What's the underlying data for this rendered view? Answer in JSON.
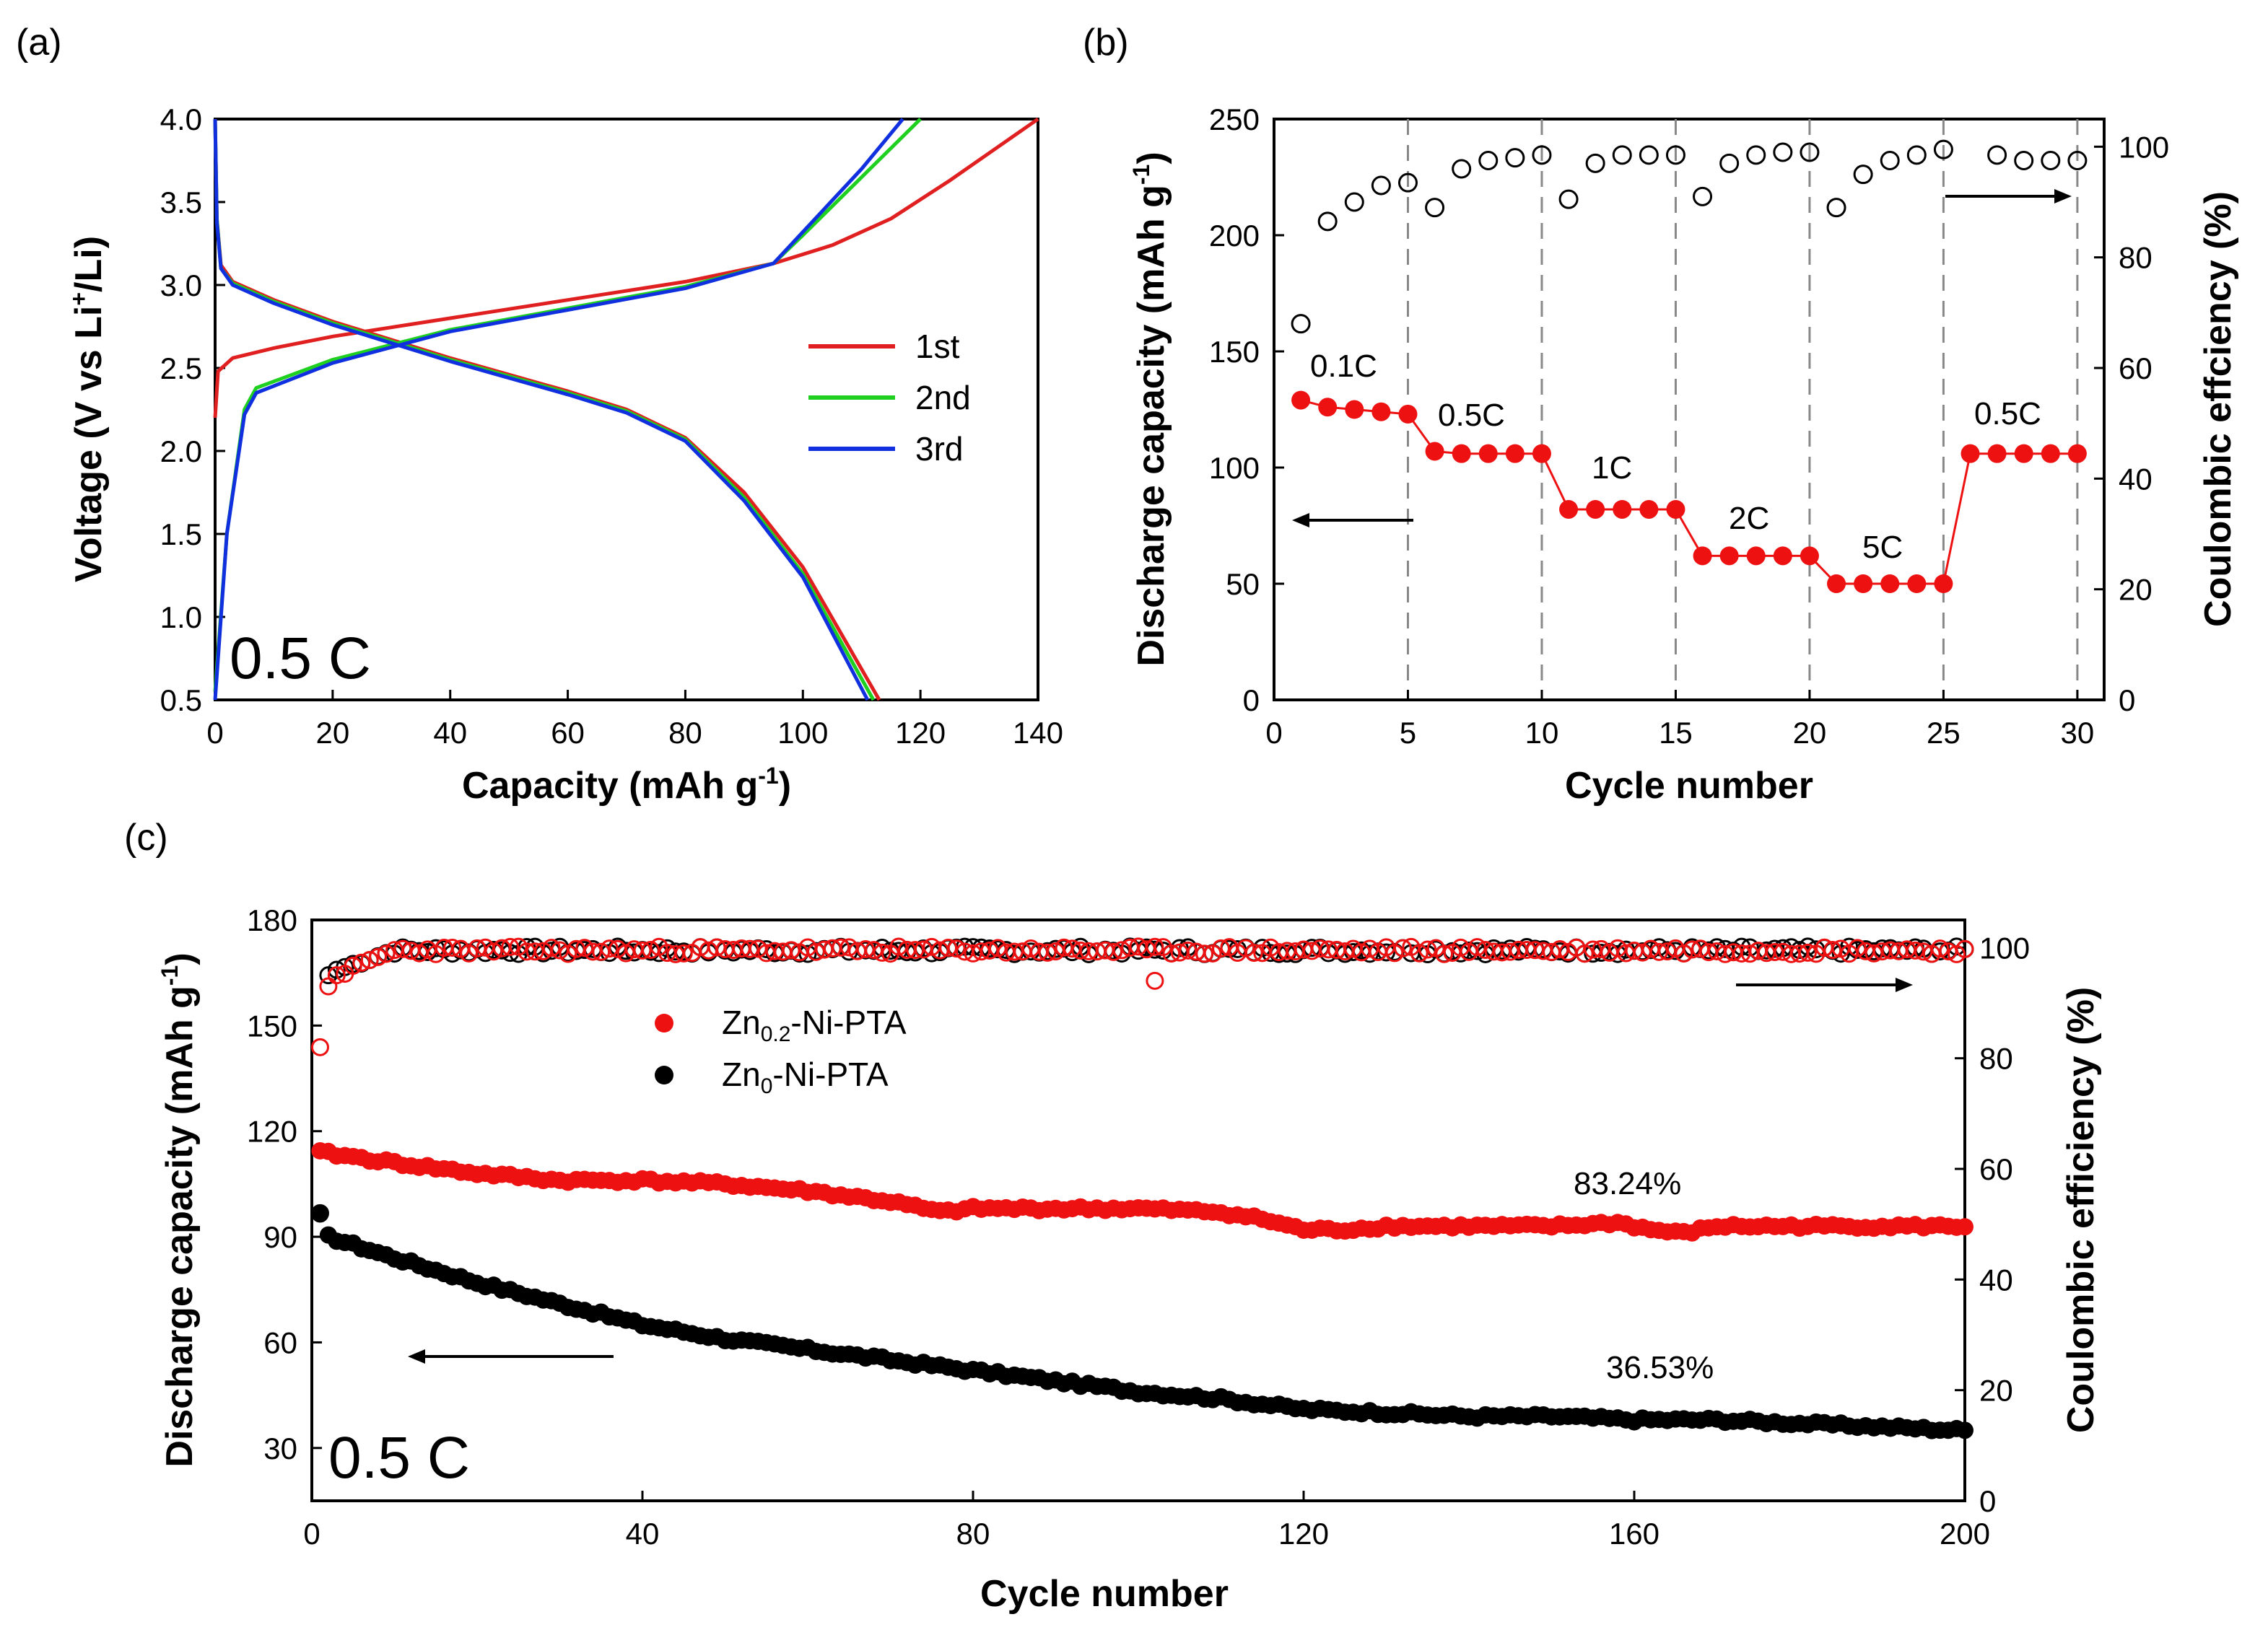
{
  "chart_data": [
    {
      "panel": "(a)",
      "type": "line",
      "xlabel": "Capacity (mAh g",
      "xlabel_sup": "-1",
      "xlabel_end": ")",
      "ylabel": "Voltage (V vs Li",
      "ylabel_sup": "+",
      "ylabel_end": "/Li)",
      "xlim": [
        0,
        140
      ],
      "ylim": [
        0.5,
        4.0
      ],
      "xticks": [
        "0",
        "20",
        "40",
        "60",
        "80",
        "100",
        "120",
        "140"
      ],
      "yticks": [
        "0.5",
        "1.0",
        "1.5",
        "2.0",
        "2.5",
        "3.0",
        "3.5",
        "4.0"
      ],
      "annotation": "0.5 C",
      "legend": [
        "1st",
        "2nd",
        "3rd"
      ],
      "series": [
        {
          "name": "1st",
          "color": "#e02020",
          "charge": [
            [
              0,
              2.2
            ],
            [
              0.5,
              2.48
            ],
            [
              3,
              2.56
            ],
            [
              10,
              2.62
            ],
            [
              20,
              2.69
            ],
            [
              40,
              2.8
            ],
            [
              60,
              2.91
            ],
            [
              80,
              3.02
            ],
            [
              95,
              3.13
            ],
            [
              105,
              3.24
            ],
            [
              115,
              3.4
            ],
            [
              125,
              3.63
            ],
            [
              140,
              4.0
            ]
          ],
          "discharge": [
            [
              0,
              4.0
            ],
            [
              0.3,
              3.4
            ],
            [
              1,
              3.12
            ],
            [
              3,
              3.02
            ],
            [
              10,
              2.91
            ],
            [
              20,
              2.78
            ],
            [
              40,
              2.56
            ],
            [
              60,
              2.36
            ],
            [
              70,
              2.25
            ],
            [
              80,
              2.08
            ],
            [
              90,
              1.75
            ],
            [
              100,
              1.3
            ],
            [
              113,
              0.5
            ]
          ]
        },
        {
          "name": "2nd",
          "color": "#20d020",
          "charge": [
            [
              0,
              0.55
            ],
            [
              2,
              1.5
            ],
            [
              5,
              2.25
            ],
            [
              7,
              2.38
            ],
            [
              20,
              2.55
            ],
            [
              40,
              2.73
            ],
            [
              60,
              2.86
            ],
            [
              80,
              2.99
            ],
            [
              95,
              3.13
            ],
            [
              100,
              3.3
            ],
            [
              110,
              3.65
            ],
            [
              120,
              4.0
            ]
          ],
          "discharge": [
            [
              0,
              4.0
            ],
            [
              0.3,
              3.4
            ],
            [
              1,
              3.1
            ],
            [
              3,
              3.01
            ],
            [
              10,
              2.9
            ],
            [
              20,
              2.77
            ],
            [
              40,
              2.55
            ],
            [
              60,
              2.35
            ],
            [
              70,
              2.24
            ],
            [
              80,
              2.07
            ],
            [
              90,
              1.72
            ],
            [
              100,
              1.26
            ],
            [
              112,
              0.5
            ]
          ]
        },
        {
          "name": "3rd",
          "color": "#1030e0",
          "charge": [
            [
              0,
              0.5
            ],
            [
              2,
              1.5
            ],
            [
              5,
              2.22
            ],
            [
              7,
              2.35
            ],
            [
              20,
              2.53
            ],
            [
              40,
              2.72
            ],
            [
              60,
              2.85
            ],
            [
              80,
              2.98
            ],
            [
              95,
              3.13
            ],
            [
              100,
              3.32
            ],
            [
              110,
              3.7
            ],
            [
              117,
              4.0
            ]
          ],
          "discharge": [
            [
              0,
              4.0
            ],
            [
              0.3,
              3.38
            ],
            [
              1,
              3.1
            ],
            [
              3,
              3.0
            ],
            [
              10,
              2.89
            ],
            [
              20,
              2.76
            ],
            [
              40,
              2.54
            ],
            [
              60,
              2.34
            ],
            [
              70,
              2.23
            ],
            [
              80,
              2.06
            ],
            [
              90,
              1.7
            ],
            [
              100,
              1.24
            ],
            [
              111,
              0.5
            ]
          ]
        }
      ]
    },
    {
      "panel": "(b)",
      "type": "scatter",
      "xlabel": "Cycle number",
      "ylabel_left": "Discharge capacity (mAh g",
      "ylabel_left_sup": "-1",
      "ylabel_left_end": ")",
      "ylabel_right": "Coulombic effciency (%)",
      "xlim": [
        0,
        31
      ],
      "ylim_left": [
        0,
        250
      ],
      "ylim_right": [
        0,
        105
      ],
      "xticks": [
        "0",
        "5",
        "10",
        "15",
        "20",
        "25",
        "30"
      ],
      "yticks_left": [
        "0",
        "50",
        "100",
        "150",
        "200",
        "250"
      ],
      "yticks_right": [
        "0",
        "20",
        "40",
        "60",
        "80",
        "100"
      ],
      "rate_labels": [
        "0.1C",
        "0.5C",
        "1C",
        "2C",
        "5C",
        "0.5C"
      ],
      "dashed_lines_at": [
        5,
        10,
        15,
        20,
        25,
        30
      ],
      "cycles": [
        1,
        2,
        3,
        4,
        5,
        6,
        7,
        8,
        9,
        10,
        11,
        12,
        13,
        14,
        15,
        16,
        17,
        18,
        19,
        20,
        21,
        22,
        23,
        24,
        25,
        26,
        27,
        28,
        29,
        30
      ],
      "discharge_capacity": [
        129,
        126,
        125,
        124,
        123,
        107,
        106,
        106,
        106,
        106,
        82,
        82,
        82,
        82,
        82,
        62,
        62,
        62,
        62,
        62,
        50,
        50,
        50,
        50,
        50,
        106,
        106,
        106,
        106,
        106
      ],
      "coulombic_efficiency": [
        68,
        86.5,
        90,
        93,
        93.5,
        89,
        96,
        97.5,
        98,
        98.5,
        90.5,
        97,
        98.5,
        98.5,
        98.5,
        91,
        97,
        98.5,
        99,
        99,
        89,
        95,
        97.5,
        98.5,
        99.5,
        null,
        98.5,
        97.5,
        97.5,
        97.5
      ],
      "colors": {
        "capacity": "#ee1111",
        "efficiency": "#000000"
      }
    },
    {
      "panel": "(c)",
      "type": "scatter",
      "xlabel": "Cycle number",
      "ylabel_left": "Discharge capacity (mAh g",
      "ylabel_left_sup": "-1",
      "ylabel_left_end": ")",
      "ylabel_right": "Coulombic efficiency (%)",
      "xlim": [
        0,
        200
      ],
      "ylim_left": [
        15,
        180
      ],
      "ylim_right": [
        0,
        105
      ],
      "xticks": [
        "0",
        "40",
        "80",
        "120",
        "160",
        "200"
      ],
      "yticks_left": [
        "30",
        "60",
        "90",
        "120",
        "150",
        "180"
      ],
      "yticks_right": [
        "0",
        "20",
        "40",
        "60",
        "80",
        "100"
      ],
      "annotation": "0.5 C",
      "retention_labels": [
        "83.24%",
        "36.53%"
      ],
      "legend": [
        {
          "pre": "Zn",
          "sub": "0.2",
          "post": "-Ni-PTA",
          "color": "#ee1111"
        },
        {
          "pre": "Zn",
          "sub": "0",
          "post": "-Ni-PTA",
          "color": "#000000"
        }
      ],
      "series": [
        {
          "name": "Zn0.2-Ni-PTA",
          "color": "#ee1111",
          "capacity_trend": [
            [
              1,
              114
            ],
            [
              10,
              111
            ],
            [
              20,
              108
            ],
            [
              30,
              106
            ],
            [
              40,
              106
            ],
            [
              50,
              105
            ],
            [
              60,
              103
            ],
            [
              70,
              100
            ],
            [
              76,
              97
            ],
            [
              80,
              98
            ],
            [
              90,
              98
            ],
            [
              100,
              98
            ],
            [
              110,
              97
            ],
            [
              115,
              95
            ],
            [
              120,
              92
            ],
            [
              125,
              92
            ],
            [
              130,
              93
            ],
            [
              140,
              93
            ],
            [
              150,
              93
            ],
            [
              158,
              94
            ],
            [
              162,
              92
            ],
            [
              166,
              91
            ],
            [
              170,
              93
            ],
            [
              180,
              93
            ],
            [
              190,
              93
            ],
            [
              200,
              93
            ]
          ],
          "efficiency_first": [
            82,
            93,
            95
          ],
          "efficiency_plateau": 99.5
        },
        {
          "name": "Zn0-Ni-PTA",
          "color": "#000000",
          "capacity_trend": [
            [
              1,
              96
            ],
            [
              2,
              90
            ],
            [
              10,
              84
            ],
            [
              20,
              77
            ],
            [
              30,
              71
            ],
            [
              40,
              65
            ],
            [
              45,
              63
            ],
            [
              50,
              61
            ],
            [
              60,
              58
            ],
            [
              70,
              55
            ],
            [
              80,
              52
            ],
            [
              90,
              49
            ],
            [
              100,
              46
            ],
            [
              110,
              44
            ],
            [
              120,
              41
            ],
            [
              130,
              40
            ],
            [
              140,
              39
            ],
            [
              150,
              39
            ],
            [
              160,
              38
            ],
            [
              170,
              38
            ],
            [
              180,
              37
            ],
            [
              190,
              36
            ],
            [
              200,
              35
            ]
          ],
          "efficiency_first": [
            52,
            95,
            96
          ],
          "efficiency_plateau": 99.5
        }
      ]
    }
  ]
}
